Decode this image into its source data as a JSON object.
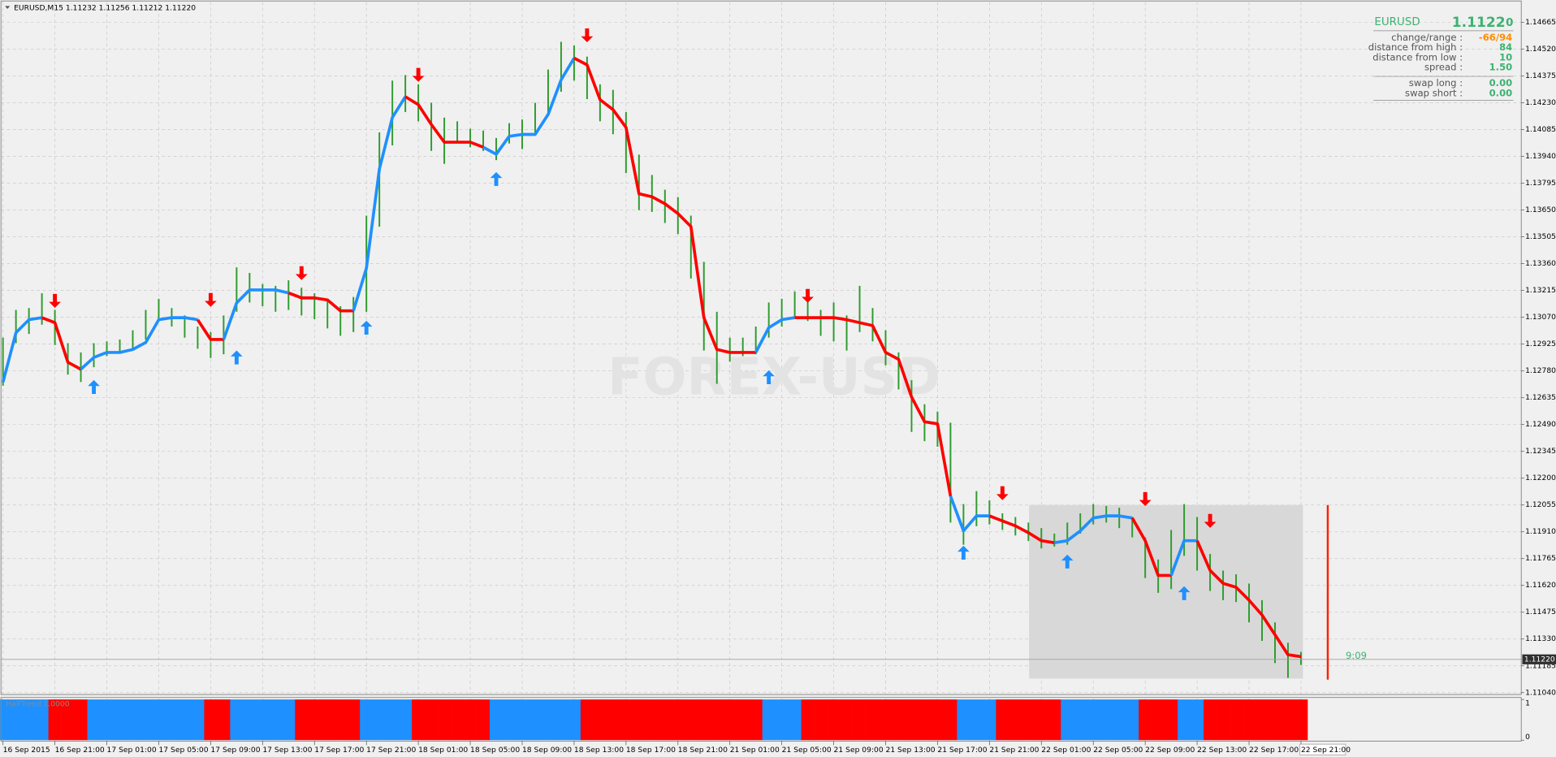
{
  "chart_data": {
    "type": "ohlc",
    "title": "EURUSD,M15  1.11232 1.11256 1.11212 1.11220",
    "categories": [
      "16 Sep 2015",
      null,
      null,
      null,
      "16 Sep 21:00",
      null,
      null,
      null,
      "17 Sep 01:00",
      null,
      null,
      null,
      "17 Sep 05:00",
      null,
      null,
      null,
      "17 Sep 09:00",
      null,
      null,
      null,
      "17 Sep 13:00",
      null,
      null,
      null,
      "17 Sep 17:00",
      null,
      null,
      null,
      "17 Sep 21:00",
      null,
      null,
      null,
      "18 Sep 01:00",
      null,
      null,
      null,
      "18 Sep 05:00",
      null,
      null,
      null,
      "18 Sep 09:00",
      null,
      null,
      null,
      "18 Sep 13:00",
      null,
      null,
      null,
      "18 Sep 17:00",
      null,
      null,
      null,
      "18 Sep 21:00",
      null,
      null,
      null,
      "21 Sep 01:00",
      null,
      null,
      null,
      "21 Sep 05:00",
      null,
      null,
      null,
      "21 Sep 09:00",
      null,
      null,
      null,
      "21 Sep 13:00",
      null,
      null,
      null,
      "21 Sep 17:00",
      null,
      null,
      null,
      "21 Sep 21:00",
      null,
      null,
      null,
      "22 Sep 01:00",
      null,
      null,
      null,
      "22 Sep 05:00",
      null,
      null,
      null,
      "22 Sep 09:00",
      null,
      null,
      null,
      "22 Sep 13:00",
      null,
      null,
      null,
      "22 Sep 17:00",
      null,
      null,
      null,
      "22 Sep 21:00"
    ],
    "high": [
      1.1296,
      1.1311,
      1.1312,
      1.132,
      1.1311,
      1.1293,
      1.1288,
      1.1293,
      1.1294,
      1.1295,
      1.13,
      1.1311,
      1.1317,
      1.1312,
      1.1308,
      1.1302,
      1.1299,
      1.1308,
      1.1334,
      1.1331,
      1.1325,
      1.1324,
      1.1327,
      1.1323,
      1.132,
      1.1317,
      1.1313,
      1.1318,
      1.1362,
      1.1407,
      1.1435,
      1.1438,
      1.1433,
      1.1423,
      1.1415,
      1.1413,
      1.1409,
      1.1408,
      1.1404,
      1.1412,
      1.1414,
      1.1423,
      1.1441,
      1.1456,
      1.1454,
      1.1448,
      1.1433,
      1.143,
      1.1418,
      1.1395,
      1.1384,
      1.1376,
      1.1372,
      1.1362,
      1.1337,
      1.131,
      1.1296,
      1.1296,
      1.1302,
      1.1315,
      1.1317,
      1.1321,
      1.1318,
      1.1311,
      1.1315,
      1.1308,
      1.1324,
      1.1312,
      1.13,
      1.1288,
      1.1273,
      1.126,
      1.1256,
      1.125,
      1.1206,
      1.1213,
      1.1208,
      1.1201,
      1.1199,
      1.1196,
      1.1193,
      1.119,
      1.1196,
      1.1201,
      1.1206,
      1.1205,
      1.1204,
      1.1199,
      1.1188,
      1.1176,
      1.1192,
      1.1206,
      1.1199,
      1.1179,
      1.117,
      1.1168,
      1.1163,
      1.1154,
      1.1142,
      1.1131,
      1.1126
    ],
    "low": [
      1.127,
      1.1293,
      1.1298,
      1.1303,
      1.1292,
      1.1276,
      1.1272,
      1.128,
      1.1286,
      1.1288,
      1.1289,
      1.1295,
      1.1305,
      1.1302,
      1.1296,
      1.129,
      1.1285,
      1.1287,
      1.131,
      1.1315,
      1.1313,
      1.131,
      1.1311,
      1.1308,
      1.1306,
      1.1301,
      1.1297,
      1.1299,
      1.131,
      1.1356,
      1.14,
      1.1418,
      1.1413,
      1.1397,
      1.139,
      1.1402,
      1.1399,
      1.1397,
      1.1392,
      1.1401,
      1.1398,
      1.1406,
      1.1417,
      1.1429,
      1.1435,
      1.1425,
      1.1413,
      1.1406,
      1.1385,
      1.1365,
      1.1364,
      1.1358,
      1.1352,
      1.1328,
      1.1289,
      1.1271,
      1.1283,
      1.1286,
      1.1287,
      1.1296,
      1.1302,
      1.1307,
      1.1305,
      1.1297,
      1.1294,
      1.1289,
      1.1299,
      1.1294,
      1.1281,
      1.1268,
      1.1245,
      1.124,
      1.1237,
      1.1196,
      1.1184,
      1.1194,
      1.1195,
      1.1192,
      1.1189,
      1.1186,
      1.1182,
      1.1183,
      1.1184,
      1.119,
      1.1195,
      1.1196,
      1.1193,
      1.1188,
      1.1166,
      1.1158,
      1.116,
      1.1178,
      1.117,
      1.1159,
      1.1154,
      1.1153,
      1.1142,
      1.1132,
      1.112,
      1.1112,
      1.1119
    ],
    "bar_color": "#2e9b2e",
    "trend": {
      "values": [
        1.12719,
        1.12987,
        1.13057,
        1.13068,
        1.13041,
        1.12827,
        1.12789,
        1.12853,
        1.1288,
        1.1288,
        1.12896,
        1.12934,
        1.13057,
        1.13068,
        1.13068,
        1.13057,
        1.1295,
        1.1295,
        1.13148,
        1.13218,
        1.13218,
        1.13218,
        1.13202,
        1.13175,
        1.13175,
        1.13164,
        1.13105,
        1.13105,
        1.13336,
        1.13872,
        1.14151,
        1.14263,
        1.1422,
        1.14113,
        1.14017,
        1.14017,
        1.14017,
        1.1399,
        1.13952,
        1.14049,
        1.14059,
        1.14059,
        1.14167,
        1.14354,
        1.14472,
        1.14435,
        1.14247,
        1.14193,
        1.14097,
        1.13738,
        1.13722,
        1.13684,
        1.13631,
        1.13561,
        1.13068,
        1.12896,
        1.1288,
        1.1288,
        1.1288,
        1.13014,
        1.13057,
        1.13068,
        1.13068,
        1.13068,
        1.13068,
        1.13057,
        1.13041,
        1.13025,
        1.1288,
        1.12843,
        1.12639,
        1.12505,
        1.12494,
        1.12103,
        1.11915,
        1.11996,
        1.11996,
        1.11969,
        1.11942,
        1.11905,
        1.11862,
        1.11851,
        1.11862,
        1.11915,
        1.11985,
        1.11996,
        1.11996,
        1.11985,
        1.11862,
        1.11674,
        1.11674,
        1.11862,
        1.11862,
        1.11701,
        1.11631,
        1.1161,
        1.1154,
        1.1146,
        1.11353,
        1.11245,
        1.11235
      ],
      "up_color": "#1e90ff",
      "down_color": "#ff0000",
      "up_arrows": [
        null,
        null,
        null,
        null,
        null,
        null,
        null,
        1.12693,
        null,
        null,
        null,
        null,
        null,
        null,
        null,
        null,
        null,
        null,
        1.12853,
        null,
        null,
        null,
        null,
        null,
        null,
        null,
        null,
        null,
        1.13014,
        null,
        null,
        null,
        null,
        null,
        null,
        null,
        null,
        null,
        1.13818,
        null,
        null,
        null,
        null,
        null,
        null,
        null,
        null,
        null,
        null,
        null,
        null,
        null,
        null,
        null,
        null,
        null,
        null,
        null,
        null,
        1.12746,
        null,
        null,
        null,
        null,
        null,
        null,
        null,
        null,
        null,
        null,
        null,
        null,
        null,
        null,
        1.11797,
        null,
        null,
        null,
        null,
        null,
        null,
        null,
        1.11749,
        null,
        null,
        null,
        null,
        null,
        null,
        null,
        null,
        1.11578,
        null,
        null,
        null,
        null,
        null,
        null,
        null,
        null,
        null
      ],
      "down_arrows": [
        null,
        null,
        null,
        null,
        1.13159,
        null,
        null,
        null,
        null,
        null,
        null,
        null,
        null,
        null,
        null,
        null,
        1.13164,
        null,
        null,
        null,
        null,
        null,
        null,
        1.13309,
        null,
        null,
        null,
        null,
        null,
        null,
        null,
        null,
        1.14381,
        null,
        null,
        null,
        null,
        null,
        null,
        null,
        null,
        null,
        null,
        null,
        null,
        1.14595,
        null,
        null,
        null,
        null,
        null,
        null,
        null,
        null,
        null,
        null,
        null,
        null,
        null,
        null,
        null,
        null,
        1.13186,
        null,
        null,
        null,
        null,
        null,
        null,
        null,
        null,
        null,
        null,
        null,
        null,
        null,
        null,
        1.12119,
        null,
        null,
        null,
        null,
        null,
        null,
        null,
        null,
        null,
        null,
        1.12087,
        null,
        null,
        null,
        null,
        1.11969,
        null,
        null,
        null,
        null,
        null,
        null,
        null
      ]
    },
    "ylim": [
      1.1103,
      1.1477
    ],
    "yticks": [
      1.14665,
      {
        "value": 1.1452,
        "label": "1.14520"
      },
      1.14375,
      {
        "value": 1.1423,
        "label": "1.14230"
      },
      1.14085,
      {
        "value": 1.1394,
        "label": "1.13940"
      },
      1.13795,
      {
        "value": 1.1365,
        "label": "1.13650"
      },
      1.13505,
      {
        "value": 1.1336,
        "label": "1.13360"
      },
      1.13215,
      {
        "value": 1.1307,
        "label": "1.13070"
      },
      1.12925,
      {
        "value": 1.1278,
        "label": "1.12780"
      },
      1.12635,
      {
        "value": 1.1249,
        "label": "1.12490"
      },
      1.12345,
      {
        "value": 1.122,
        "label": "1.12200"
      },
      1.12055,
      {
        "value": 1.1191,
        "label": "1.11910"
      },
      1.11765,
      {
        "value": 1.1162,
        "label": "1.11620"
      },
      1.11475,
      {
        "value": 1.1133,
        "label": "1.11330"
      },
      1.11185,
      {
        "value": 1.1104,
        "label": "1.11040"
      }
    ],
    "grid": true,
    "price_line": {
      "value": 1.1122,
      "label": "1.11220"
    },
    "timer": "9:09",
    "watermark": "FOREX-USD",
    "info_panel": {
      "symbol": "EURUSD",
      "price": "1.1122",
      "price_pip": "0",
      "rows": [
        {
          "label": "change/range :",
          "value": "-66/94",
          "color": "#ff8c00"
        },
        {
          "label": "distance from high :",
          "value": "84",
          "color": "#3cb371"
        },
        {
          "label": "distance from low :",
          "value": "10",
          "color": "#3cb371"
        },
        {
          "label": "spread :",
          "value": "1.50",
          "color": "#3cb371"
        },
        {
          "label": "swap long :",
          "value": "0.00",
          "color": "#3cb371"
        },
        {
          "label": "swap short :",
          "value": "0.00",
          "color": "#3cb371"
        }
      ]
    },
    "indicator": {
      "label": "HalfTrend 1.0000",
      "values": [
        1,
        1,
        1,
        1,
        1,
        1,
        1,
        1,
        1,
        1,
        1,
        1,
        1,
        1,
        1,
        1,
        1,
        1,
        1,
        1,
        1,
        1,
        1,
        1,
        1,
        1,
        1,
        1,
        1,
        1,
        1,
        1,
        1,
        1,
        1,
        1,
        1,
        1,
        1,
        1,
        1,
        1,
        1,
        1,
        1,
        1,
        1,
        1,
        1,
        1,
        1,
        1,
        1,
        1,
        1,
        1,
        1,
        1,
        1,
        1,
        1,
        1,
        1,
        1,
        1,
        1,
        1,
        1,
        1,
        1,
        1,
        1,
        1,
        1,
        1,
        1,
        1,
        1,
        1,
        1,
        1,
        1,
        1,
        1,
        1,
        1,
        1,
        1,
        1,
        1,
        1,
        1,
        1,
        1,
        1,
        1,
        1,
        1,
        1,
        1,
        1
      ],
      "ylim": [
        0,
        1
      ],
      "yticks": [
        0,
        1
      ]
    }
  }
}
